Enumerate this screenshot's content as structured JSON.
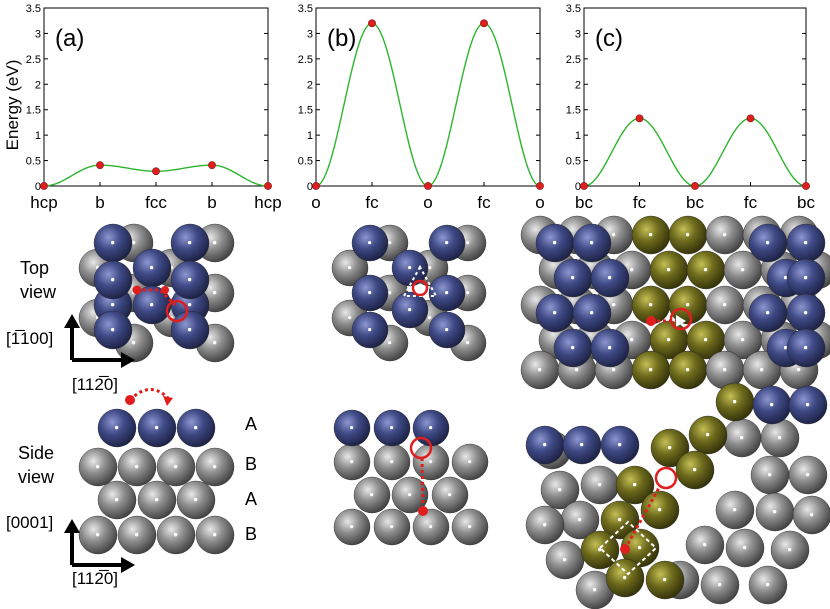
{
  "figure": {
    "y_axis_label": "Energy (eV)",
    "y_ticks": [
      "0",
      "0.5",
      "1",
      "1.5",
      "2",
      "2.5",
      "3",
      "3.5"
    ],
    "top_view_label": [
      "Top",
      "view"
    ],
    "side_view_label": [
      "Side",
      "view"
    ],
    "direction_labels": {
      "top_vertical": "[1̅100]",
      "top_horizontal": "[112̅0]",
      "side_vertical": "[0001]",
      "side_horizontal": "[112̅0]"
    },
    "stacking_labels": [
      "A",
      "B",
      "A",
      "B"
    ],
    "colors": {
      "curve": "#2db52d",
      "marker": "#e01e1e",
      "atom_top": "#3b4580",
      "atom_bulk": "#8c8c8c",
      "atom_olive": "#6d6a1c",
      "path": "#e01e1e"
    }
  },
  "chart_data": [
    {
      "type": "line",
      "panel_label": "(a)",
      "categories": [
        "hcp",
        "b",
        "fcc",
        "b",
        "hcp"
      ],
      "values": [
        0,
        0.41,
        0.29,
        0.41,
        0
      ],
      "ylabel": "Energy (eV)",
      "ylim": [
        0,
        3.5
      ]
    },
    {
      "type": "line",
      "panel_label": "(b)",
      "categories": [
        "o",
        "fc",
        "o",
        "fc",
        "o"
      ],
      "values": [
        0,
        3.2,
        0,
        3.2,
        0
      ],
      "ylim": [
        0,
        3.5
      ]
    },
    {
      "type": "line",
      "panel_label": "(c)",
      "categories": [
        "bc",
        "fc",
        "bc",
        "fc",
        "bc"
      ],
      "values": [
        0,
        1.33,
        0,
        1.33,
        0
      ],
      "ylim": [
        0,
        3.5
      ]
    }
  ]
}
